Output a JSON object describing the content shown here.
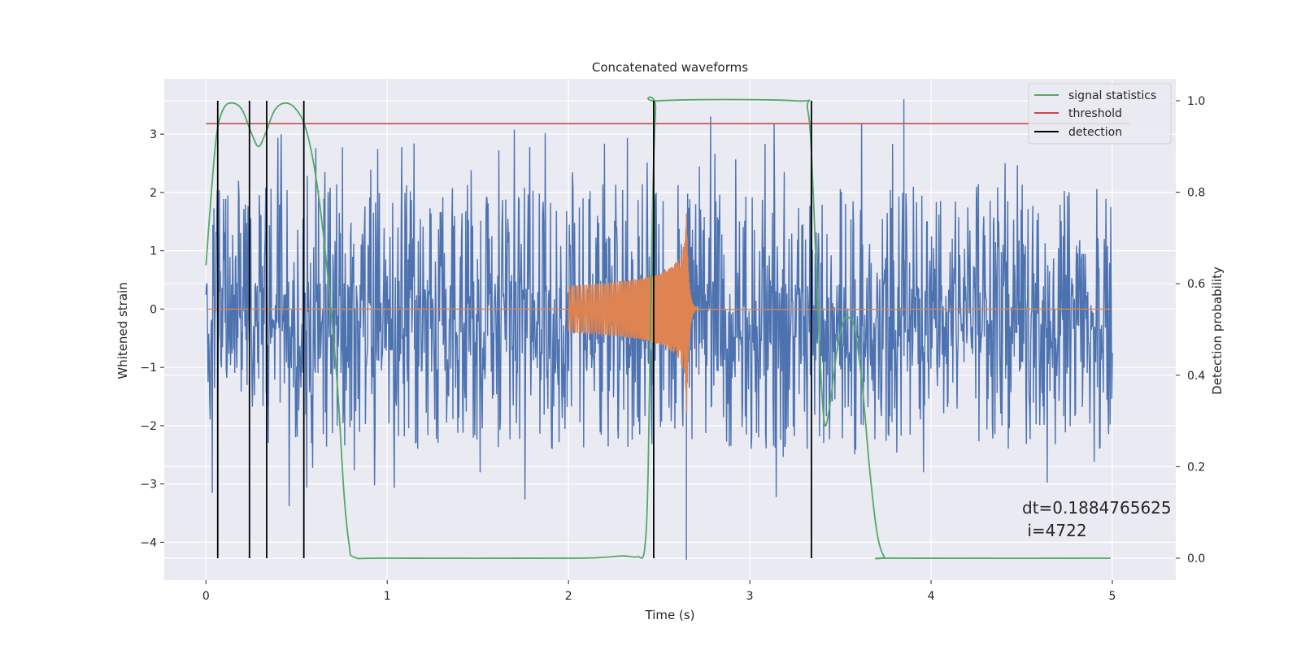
{
  "chart_data": {
    "type": "line",
    "title": "Concatenated waveforms",
    "xlabel": "Time (s)",
    "ylabel": "Whitened strain",
    "ylabel_right": "Detection probability",
    "xlim": [
      -0.23,
      5.35
    ],
    "ylim": [
      -4.65,
      3.95
    ],
    "ylim_right": [
      -0.048,
      1.048
    ],
    "x_ticks": [
      0,
      1,
      2,
      3,
      4,
      5
    ],
    "x_tick_labels": [
      "0",
      "1",
      "2",
      "3",
      "4",
      "5"
    ],
    "y_ticks": [
      -4,
      -3,
      -2,
      -1,
      0,
      1,
      2,
      3
    ],
    "y_tick_labels": [
      "−4",
      "−3",
      "−2",
      "−1",
      "0",
      "1",
      "2",
      "3"
    ],
    "y_right_ticks": [
      0.0,
      0.2,
      0.4,
      0.6,
      0.8,
      1.0
    ],
    "y_right_tick_labels": [
      "0.0",
      "0.2",
      "0.4",
      "0.6",
      "0.8",
      "1.0"
    ],
    "grid": true,
    "legend_position": "top-right",
    "legend": [
      "signal statistics",
      "threshold",
      "detection"
    ],
    "annotation": [
      "dt=0.1884765625",
      " i=4722"
    ],
    "colors": {
      "noise": "#4c72b0",
      "signal": "#dd8452",
      "statistics": "#55a868",
      "threshold": "#c44e52",
      "detection": "#000000",
      "axes_bg": "#eaeaf2",
      "grid": "#ffffff"
    },
    "noise_series": {
      "x_range": [
        0,
        5
      ],
      "band_low": -1.1,
      "band_high": 0.45,
      "max": 3.6,
      "min": -4.3
    },
    "signal_series": {
      "start": 2.0,
      "merger": 2.65,
      "amplitude_start": 0.4,
      "amplitude_peak": 2.1,
      "ringdown_end": 2.72
    },
    "statistics_series": {
      "axis": "right",
      "points": [
        [
          0.0,
          0.64
        ],
        [
          0.03,
          0.8
        ],
        [
          0.06,
          0.93
        ],
        [
          0.1,
          0.985
        ],
        [
          0.15,
          0.995
        ],
        [
          0.2,
          0.98
        ],
        [
          0.25,
          0.93
        ],
        [
          0.29,
          0.9
        ],
        [
          0.33,
          0.93
        ],
        [
          0.38,
          0.98
        ],
        [
          0.44,
          0.995
        ],
        [
          0.5,
          0.98
        ],
        [
          0.55,
          0.94
        ],
        [
          0.6,
          0.85
        ],
        [
          0.65,
          0.7
        ],
        [
          0.7,
          0.5
        ],
        [
          0.73,
          0.35
        ],
        [
          0.76,
          0.15
        ],
        [
          0.79,
          0.03
        ],
        [
          0.82,
          0.002
        ],
        [
          1.0,
          0.0
        ],
        [
          2.0,
          0.0
        ],
        [
          2.2,
          0.002
        ],
        [
          2.3,
          0.005
        ],
        [
          2.38,
          0.003
        ],
        [
          2.42,
          0.02
        ],
        [
          2.44,
          0.2
        ],
        [
          2.46,
          0.7
        ],
        [
          2.48,
          0.98
        ],
        [
          2.5,
          1.0
        ],
        [
          3.25,
          1.0
        ],
        [
          3.32,
          0.98
        ],
        [
          3.35,
          0.8
        ],
        [
          3.38,
          0.5
        ],
        [
          3.41,
          0.3
        ],
        [
          3.44,
          0.33
        ],
        [
          3.48,
          0.45
        ],
        [
          3.52,
          0.52
        ],
        [
          3.55,
          0.525
        ],
        [
          3.58,
          0.5
        ],
        [
          3.62,
          0.38
        ],
        [
          3.66,
          0.2
        ],
        [
          3.7,
          0.06
        ],
        [
          3.74,
          0.005
        ],
        [
          3.8,
          0.0
        ],
        [
          4.99,
          0.0
        ]
      ]
    },
    "threshold_value": 0.95,
    "threshold_x": [
      0,
      5.1
    ],
    "detections": [
      0.065,
      0.24,
      0.335,
      0.54,
      2.47,
      3.34
    ]
  }
}
